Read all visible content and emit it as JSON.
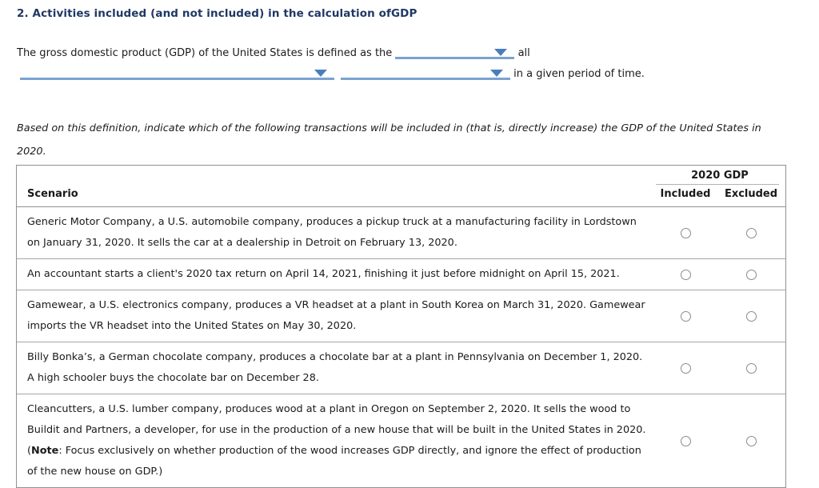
{
  "title": "2. Activities included (and not included) in the calculation ofGDP",
  "definition": {
    "line1_prefix": "The gross domestic product (GDP) of the United States is defined as the",
    "line1_suffix": "all",
    "line2_suffix": "in a given period of time.",
    "dropdown1_value": "",
    "dropdown2_value": "",
    "dropdown3_value": ""
  },
  "instructions": {
    "line1": "Based on this definition, indicate which of the following transactions will be included in (that is, directly increase) the GDP of the United States in",
    "line2": "2020."
  },
  "table": {
    "scenario_header": "Scenario",
    "group_header": "2020 GDP",
    "columns": [
      "Included",
      "Excluded"
    ],
    "rows": [
      {
        "included": false,
        "excluded": false,
        "lines": [
          [
            {
              "text": "Generic Motor Company, a U.S. automobile company, produces a pickup truck at a manufacturing facility in Lordstown"
            }
          ],
          [
            {
              "text": "on January 31, 2020. It sells the car at a dealership in Detroit on February 13, 2020."
            }
          ]
        ]
      },
      {
        "included": false,
        "excluded": false,
        "lines": [
          [
            {
              "text": "An accountant starts a client's 2020 tax return on April 14, 2021, finishing it just before midnight on April 15, 2021."
            }
          ]
        ]
      },
      {
        "included": false,
        "excluded": false,
        "lines": [
          [
            {
              "text": "Gamewear, a U.S. electronics company, produces a VR headset at a plant in South Korea on March 31, 2020. Gamewear"
            }
          ],
          [
            {
              "text": "imports the VR headset into the United States on May 30, 2020."
            }
          ]
        ]
      },
      {
        "included": false,
        "excluded": false,
        "lines": [
          [
            {
              "text": "Billy Bonka’s, a German chocolate company, produces a chocolate bar at a plant in Pennsylvania on December 1, 2020."
            }
          ],
          [
            {
              "text": "A high schooler buys the chocolate bar on December 28."
            }
          ]
        ]
      },
      {
        "included": false,
        "excluded": false,
        "lines": [
          [
            {
              "text": "Cleancutters, a U.S. lumber company, produces wood at a plant in Oregon on September 2, 2020. It sells the wood to"
            }
          ],
          [
            {
              "text": "Buildit and Partners, a developer, for use in the production of a new house that will be built in the United States in 2020."
            }
          ],
          [
            {
              "text": "("
            },
            {
              "text": "Note",
              "bold": true
            },
            {
              "text": ": Focus exclusively on whether production of the wood increases GDP directly, and ignore the effect of production"
            }
          ],
          [
            {
              "text": "of the new house on GDP.)"
            }
          ]
        ]
      }
    ]
  },
  "colors": {
    "title": "#1f3864",
    "dropdown_line": "#7aa2d0",
    "dropdown_arrow": "#4a7ebb",
    "table_border": "#919191",
    "row_divider": "#a6a6a6"
  }
}
